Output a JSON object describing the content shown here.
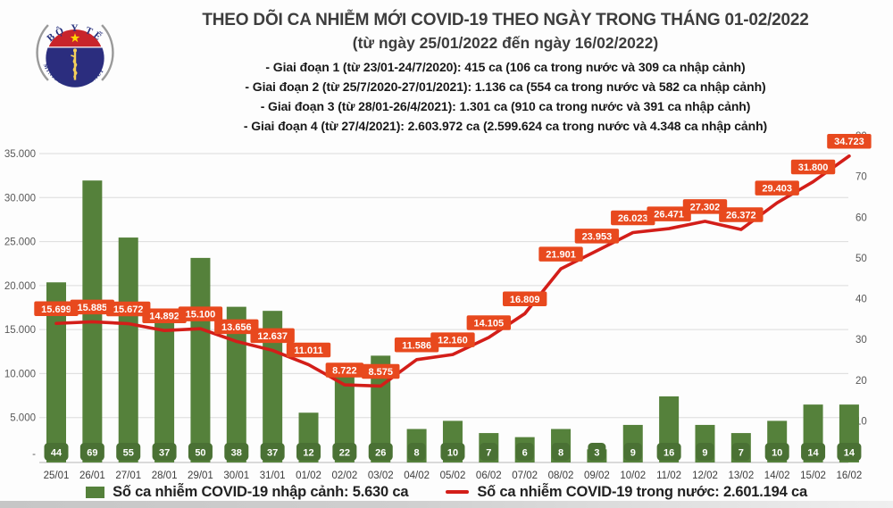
{
  "header": {
    "logo": {
      "top": "BỘ Y TẾ",
      "bottom": "MINISTRY OF HEALTH"
    },
    "title": "THEO DÕI CA NHIỄM MỚI COVID-19 THEO NGÀY TRONG THÁNG 01-02/2022",
    "subtitle": "(từ ngày 25/01/2022 đến ngày 16/02/2022)",
    "bullets": [
      "- Giai đoạn 1 (từ 23/01-24/7/2020): 415 ca (106 ca trong nước và 309 ca nhập cảnh)",
      "- Giai đoạn 2 (từ 25/7/2020-27/01/2021): 1.136 ca (554 ca trong nước và 582 ca nhập cảnh)",
      "- Giai đoạn 3 (từ 28/01-26/4/2021): 1.301 ca (910 ca trong nước và 391 ca nhập cảnh)",
      "- Giai đoạn 4 (từ 27/4/2021): 2.603.972 ca (2.599.624 ca trong nước và 4.348 ca nhập cảnh)"
    ]
  },
  "chart_data": {
    "type": "bar",
    "subtype": "combo bar+line, dual axis",
    "categories": [
      "25/01",
      "26/01",
      "27/01",
      "28/01",
      "29/01",
      "30/01",
      "31/01",
      "01/02",
      "02/02",
      "03/02",
      "04/02",
      "05/02",
      "06/02",
      "07/02",
      "08/02",
      "09/02",
      "10/02",
      "11/02",
      "12/02",
      "13/02",
      "14/02",
      "15/02",
      "16/02"
    ],
    "series": [
      {
        "name": "Số ca nhiễm COVID-19 nhập cảnh",
        "type": "bar",
        "axis": "right",
        "color": "#55813B",
        "label_box_color": "#4A7134",
        "values": [
          44,
          69,
          55,
          37,
          50,
          38,
          37,
          12,
          22,
          26,
          8,
          10,
          7,
          6,
          8,
          3,
          9,
          16,
          9,
          7,
          10,
          14,
          14
        ]
      },
      {
        "name": "Số ca nhiễm COVID-19 trong nước",
        "type": "line",
        "axis": "left",
        "color": "#D31E19",
        "label_box_color": "#E8491E",
        "values": [
          15699,
          15885,
          15672,
          14892,
          15100,
          13656,
          12637,
          11011,
          8722,
          8575,
          11586,
          12160,
          14105,
          16809,
          21901,
          23953,
          26023,
          26471,
          27302,
          26372,
          29403,
          31800,
          34723
        ]
      }
    ],
    "left_axis": {
      "min": 0,
      "max": 35000,
      "tick_step": 5000,
      "zero_label": "-",
      "tick_color": "#595959"
    },
    "right_axis": {
      "min": 0,
      "max": 80,
      "tick_step": 10,
      "zero_label": "-",
      "tick_color": "#595959"
    },
    "grid": true,
    "grid_color": "#dcdcdc",
    "axis_line_color": "#c6c6c6",
    "x_tick_color": "#3d3d3d",
    "legend_position": "bottom",
    "legend": [
      {
        "swatch": "bar",
        "color": "#55813B",
        "label": "Số ca nhiễm COVID-19 nhập cảnh: 5.630 ca"
      },
      {
        "swatch": "line",
        "color": "#D31E19",
        "label": "Số ca nhiễm COVID-19 trong nước: 2.601.194 ca"
      }
    ]
  }
}
